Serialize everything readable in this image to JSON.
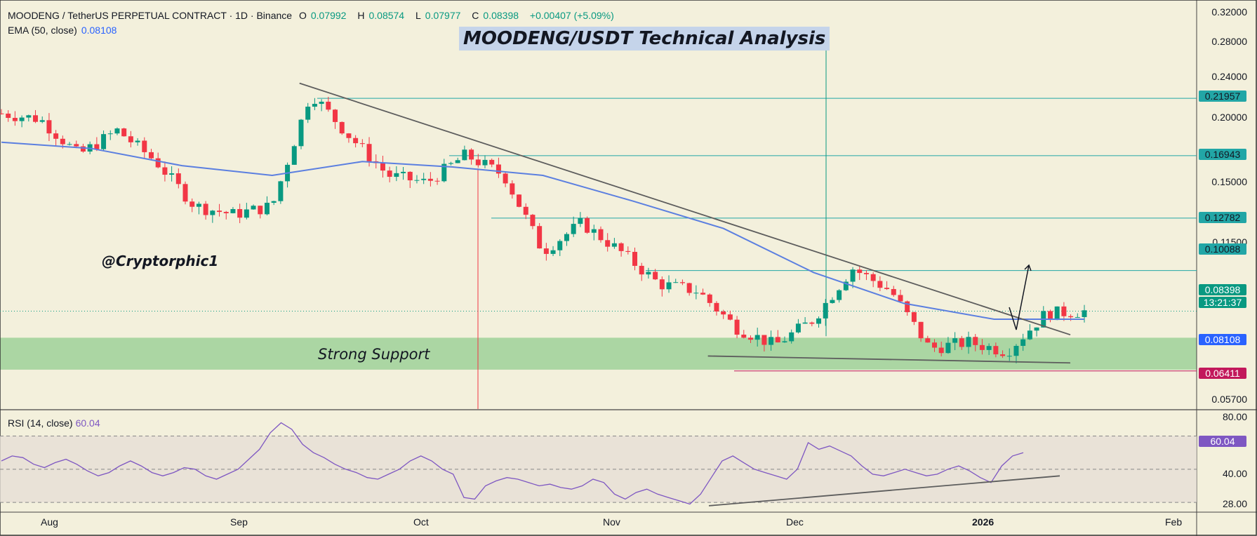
{
  "header": {
    "symbol": "MOODENG / TetherUS PERPETUAL CONTRACT · 1D · Binance",
    "o_label": "O",
    "o": "0.07992",
    "h_label": "H",
    "h": "0.08574",
    "l_label": "L",
    "l": "0.07977",
    "c_label": "C",
    "c": "0.08398",
    "change": "+0.00407 (+5.09%)",
    "ema_label": "EMA (50, close)",
    "ema_value": "0.08108"
  },
  "title": "MOODENG/USDT Technical Analysis",
  "watermark": "@Cryptorphic1",
  "support_label": "Strong Support",
  "rsi_header": {
    "label": "RSI (14, close)",
    "value": "60.04"
  },
  "colors": {
    "up": "#089981",
    "down": "#f23645",
    "ema": "#5b7fe0",
    "rsi": "#7e57c2",
    "level": "#22a6a6",
    "support": "#a3d39c",
    "background": "#f3f0dc",
    "red_level": "#c2185b",
    "trend": "#5d5d5d"
  },
  "chart_data": [
    {
      "type": "candlestick",
      "title": "MOODENG/USDT Technical Analysis",
      "scale": "log",
      "ylim": [
        0.054,
        0.34
      ],
      "y_ticks": [
        "0.32000",
        "0.28000",
        "0.24000",
        "0.20000",
        "0.15000",
        "0.11500",
        "0.05700"
      ],
      "x_ticks": [
        "Aug",
        "Sep",
        "Oct",
        "Nov",
        "Dec",
        "2026",
        "Feb"
      ],
      "horizontal_levels": [
        "0.21957",
        "0.16943",
        "0.12782",
        "0.10088"
      ],
      "current_price": "0.08398",
      "countdown": "13:21:37",
      "ema_price": "0.08108",
      "support_level": "0.06411",
      "support_zone": [
        0.0645,
        0.0745
      ],
      "descending_trendline": {
        "from": [
          "2025-09-12",
          0.235
        ],
        "to": [
          "2026-01-15",
          0.0765
        ]
      },
      "support_trendline": {
        "from": [
          "2025-11-18",
          0.0686
        ],
        "to": [
          "2026-01-15",
          0.0665
        ]
      },
      "sample_closes": [
        0.205,
        0.2,
        0.17,
        0.19,
        0.165,
        0.135,
        0.13,
        0.135,
        0.225,
        0.185,
        0.155,
        0.15,
        0.17,
        0.155,
        0.11,
        0.125,
        0.11,
        0.095,
        0.092,
        0.078,
        0.072,
        0.081,
        0.102,
        0.092,
        0.071,
        0.073,
        0.07,
        0.083,
        0.084
      ],
      "ema_samples": [
        0.18,
        0.175,
        0.162,
        0.155,
        0.165,
        0.161,
        0.155,
        0.138,
        0.122,
        0.1,
        0.087,
        0.081,
        0.081
      ]
    },
    {
      "type": "line",
      "title": "RSI (14, close)",
      "ylim": [
        25,
        85
      ],
      "y_ticks": [
        "80.00",
        "40.00",
        "28.00"
      ],
      "bands": [
        30,
        50,
        70
      ],
      "last_value": "60.04",
      "values": [
        55,
        58,
        57,
        53,
        51,
        54,
        56,
        53,
        49,
        46,
        48,
        52,
        55,
        52,
        48,
        46,
        48,
        51,
        50,
        46,
        44,
        47,
        50,
        56,
        62,
        72,
        78,
        74,
        65,
        60,
        57,
        53,
        50,
        48,
        45,
        44,
        47,
        50,
        55,
        58,
        55,
        50,
        47,
        33,
        32,
        40,
        43,
        45,
        44,
        42,
        40,
        41,
        39,
        38,
        40,
        44,
        42,
        35,
        32,
        36,
        38,
        35,
        33,
        31,
        29,
        35,
        45,
        55,
        58,
        54,
        50,
        48,
        46,
        44,
        50,
        66,
        62,
        64,
        61,
        58,
        52,
        47,
        46,
        48,
        50,
        48,
        46,
        47,
        50,
        52,
        49,
        45,
        42,
        52,
        58,
        60
      ],
      "trendline": {
        "from": [
          0.565,
          28
        ],
        "to": [
          0.845,
          46
        ]
      }
    }
  ]
}
